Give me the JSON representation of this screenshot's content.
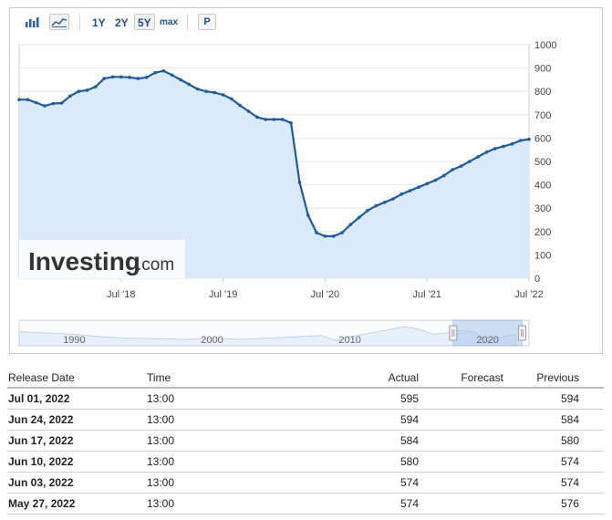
{
  "toolbar": {
    "ranges": [
      "1Y",
      "2Y",
      "5Y",
      "max"
    ],
    "active_range": "5Y",
    "p_label": "P",
    "icons": [
      "bar-chart-icon",
      "area-chart-icon"
    ]
  },
  "colors": {
    "line": "#1f5c99",
    "area": "#dbeafb",
    "navigator_area": "#e7effa",
    "navigator_window": "#a9c6ea"
  },
  "watermark": {
    "brand": "Investing",
    "suffix": ".com"
  },
  "chart_data": {
    "type": "area",
    "x_axis": "date",
    "x": [
      "2017-07",
      "2017-08",
      "2017-09",
      "2017-10",
      "2017-11",
      "2017-12",
      "2018-01",
      "2018-02",
      "2018-03",
      "2018-04",
      "2018-05",
      "2018-06",
      "2018-07",
      "2018-08",
      "2018-09",
      "2018-10",
      "2018-11",
      "2018-12",
      "2019-01",
      "2019-02",
      "2019-03",
      "2019-04",
      "2019-05",
      "2019-06",
      "2019-07",
      "2019-08",
      "2019-09",
      "2019-10",
      "2019-11",
      "2019-12",
      "2020-01",
      "2020-02",
      "2020-03",
      "2020-04",
      "2020-05",
      "2020-06",
      "2020-07",
      "2020-08",
      "2020-09",
      "2020-10",
      "2020-11",
      "2020-12",
      "2021-01",
      "2021-02",
      "2021-03",
      "2021-04",
      "2021-05",
      "2021-06",
      "2021-07",
      "2021-08",
      "2021-09",
      "2021-10",
      "2021-11",
      "2021-12",
      "2022-01",
      "2022-02",
      "2022-03",
      "2022-04",
      "2022-05",
      "2022-06",
      "2022-07"
    ],
    "y": [
      765,
      765,
      752,
      738,
      748,
      750,
      780,
      800,
      805,
      820,
      855,
      862,
      862,
      860,
      855,
      860,
      880,
      888,
      870,
      850,
      830,
      810,
      800,
      795,
      785,
      768,
      740,
      715,
      690,
      680,
      680,
      680,
      665,
      410,
      270,
      195,
      180,
      180,
      195,
      230,
      260,
      290,
      310,
      325,
      340,
      360,
      375,
      390,
      405,
      420,
      440,
      465,
      480,
      500,
      520,
      540,
      555,
      565,
      575,
      590,
      595
    ],
    "yticks": [
      0,
      100,
      200,
      300,
      400,
      500,
      600,
      700,
      800,
      900,
      1000
    ],
    "ytick_labels": [
      "0",
      "100",
      "200",
      "300",
      "400",
      "500",
      "600",
      "700",
      "800",
      "900",
      "1000"
    ],
    "xtick_dates": [
      "2018-07",
      "2019-07",
      "2020-07",
      "2021-07",
      "2022-07"
    ],
    "xtick_labels": [
      "Jul '18",
      "Jul '19",
      "Jul '20",
      "Jul '21",
      "Jul '22"
    ],
    "ylim": [
      0,
      1000
    ],
    "xlim": [
      "2017-07",
      "2022-07"
    ],
    "grid": true
  },
  "navigator": {
    "labels": [
      "1990",
      "2000",
      "2010",
      "2020"
    ],
    "label_years": [
      1990,
      2000,
      2010,
      2020
    ],
    "start_year": 1986,
    "end_year": 2023,
    "window_start_year": 2017.5,
    "window_end_year": 2022.5,
    "series": [
      [
        1986,
        0.55
      ],
      [
        1988,
        0.5
      ],
      [
        1990,
        0.45
      ],
      [
        1992,
        0.35
      ],
      [
        1994,
        0.3
      ],
      [
        1996,
        0.28
      ],
      [
        1998,
        0.25
      ],
      [
        2000,
        0.3
      ],
      [
        2002,
        0.25
      ],
      [
        2004,
        0.3
      ],
      [
        2006,
        0.35
      ],
      [
        2008,
        0.4
      ],
      [
        2009,
        0.2
      ],
      [
        2010,
        0.35
      ],
      [
        2012,
        0.55
      ],
      [
        2014,
        0.75
      ],
      [
        2015,
        0.65
      ],
      [
        2016,
        0.45
      ],
      [
        2017,
        0.5
      ],
      [
        2018,
        0.6
      ],
      [
        2019,
        0.55
      ],
      [
        2020,
        0.2
      ],
      [
        2021,
        0.35
      ],
      [
        2022,
        0.45
      ]
    ]
  },
  "table": {
    "headers": {
      "date": "Release Date",
      "time": "Time",
      "actual": "Actual",
      "forecast": "Forecast",
      "previous": "Previous"
    },
    "rows": [
      {
        "date": "Jul 01, 2022",
        "time": "13:00",
        "actual": "595",
        "forecast": "",
        "previous": "594"
      },
      {
        "date": "Jun 24, 2022",
        "time": "13:00",
        "actual": "594",
        "forecast": "",
        "previous": "584"
      },
      {
        "date": "Jun 17, 2022",
        "time": "13:00",
        "actual": "584",
        "forecast": "",
        "previous": "580"
      },
      {
        "date": "Jun 10, 2022",
        "time": "13:00",
        "actual": "580",
        "forecast": "",
        "previous": "574"
      },
      {
        "date": "Jun 03, 2022",
        "time": "13:00",
        "actual": "574",
        "forecast": "",
        "previous": "574"
      },
      {
        "date": "May 27, 2022",
        "time": "13:00",
        "actual": "574",
        "forecast": "",
        "previous": "576"
      }
    ]
  }
}
